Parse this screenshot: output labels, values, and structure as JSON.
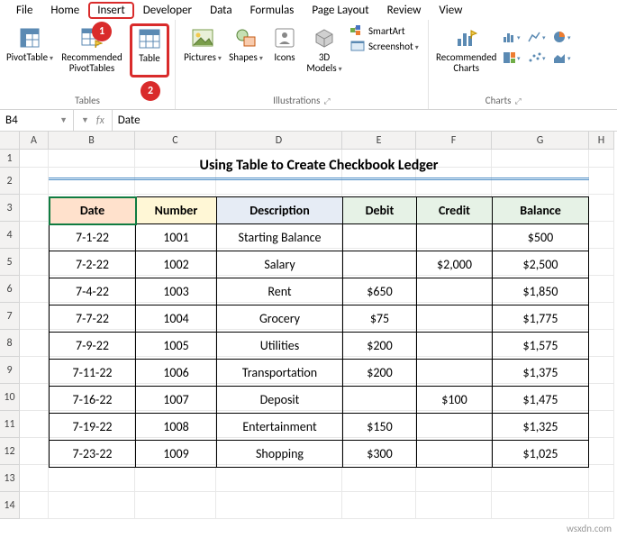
{
  "menu": {
    "items": [
      "File",
      "Home",
      "Insert",
      "Developer",
      "Data",
      "Formulas",
      "Page Layout",
      "Review",
      "View"
    ],
    "active_index": 2
  },
  "callouts": {
    "c1": "1",
    "c2": "2"
  },
  "ribbon": {
    "tables": {
      "pivot": "PivotTable",
      "recommended_pivot": "Recommended\nPivotTables",
      "table": "Table",
      "group_label": "Tables"
    },
    "illustrations": {
      "pictures": "Pictures",
      "shapes": "Shapes",
      "icons": "Icons",
      "models": "3D\nModels",
      "smartart": "SmartArt",
      "screenshot": "Screenshot",
      "group_label": "Illustrations"
    },
    "charts": {
      "recommended": "Recommended\nCharts",
      "group_label": "Charts"
    }
  },
  "namebox": "B4",
  "formula_fx": "fx",
  "formula_value": "Date",
  "columns": [
    "A",
    "B",
    "C",
    "D",
    "E",
    "F",
    "G",
    "H"
  ],
  "rows": [
    "1",
    "2",
    "3",
    "4",
    "5",
    "6",
    "7",
    "8",
    "9",
    "10",
    "11",
    "12",
    "13",
    "14"
  ],
  "title": "Using Table to Create Checkbook Ledger",
  "ledger": {
    "headers": [
      "Date",
      "Number",
      "Description",
      "Debit",
      "Credit",
      "Balance"
    ],
    "rows": [
      [
        "7-1-22",
        "1001",
        "Starting Balance",
        "",
        "",
        "$500"
      ],
      [
        "7-2-22",
        "1002",
        "Salary",
        "",
        "$2,000",
        "$2,500"
      ],
      [
        "7-4-22",
        "1003",
        "Rent",
        "$650",
        "",
        "$1,850"
      ],
      [
        "7-7-22",
        "1004",
        "Grocery",
        "$75",
        "",
        "$1,775"
      ],
      [
        "7-9-22",
        "1005",
        "Utilities",
        "$200",
        "",
        "$1,575"
      ],
      [
        "7-11-22",
        "1006",
        "Transportation",
        "$200",
        "",
        "$1,375"
      ],
      [
        "7-16-22",
        "1007",
        "Deposit",
        "",
        "$100",
        "$1,475"
      ],
      [
        "7-19-22",
        "1008",
        "Entertainment",
        "$150",
        "",
        "$1,325"
      ],
      [
        "7-23-22",
        "1009",
        "Shopping",
        "$300",
        "",
        "$1,025"
      ]
    ]
  },
  "watermark": "wsxdn.com",
  "colors": {
    "accent_red": "#d92b2b",
    "selection_green": "#107c41",
    "title_underline": "#4a8bc5"
  }
}
